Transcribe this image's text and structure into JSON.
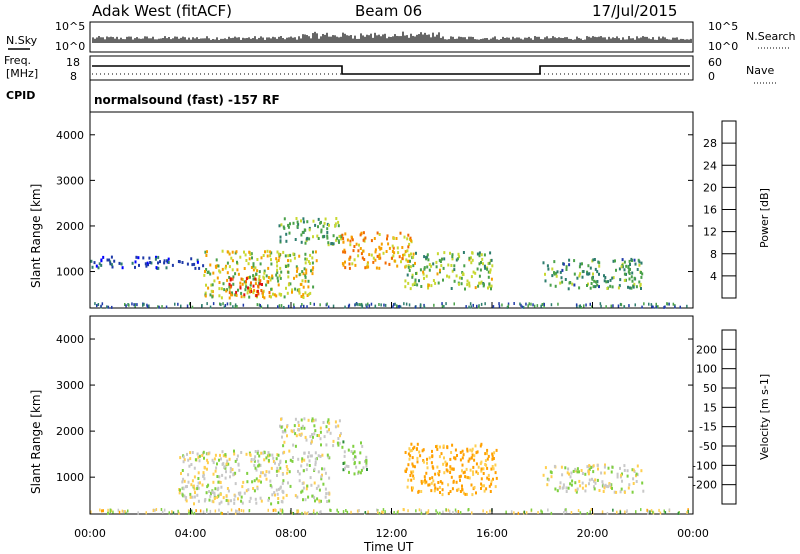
{
  "header": {
    "station": "Adak West (fitACF)",
    "beam": "Beam 06",
    "date": "17/Jul/2015"
  },
  "panels": {
    "nsky": {
      "left_label": "N.Sky",
      "right_label": "N.Search",
      "ticks_left": [
        "10^5",
        "10^0"
      ],
      "ticks_right": [
        "10^5",
        "10^0"
      ]
    },
    "freq": {
      "left_label_1": "Freq.",
      "left_label_2": "[MHz]",
      "right_label": "Nave",
      "ticks_left": [
        "18",
        "8"
      ],
      "ticks_right": [
        "60",
        "0"
      ]
    },
    "cpid": {
      "label": "CPID",
      "text": "normalsound (fast) -157 RF"
    }
  },
  "colors": {
    "power_scale": [
      "#0000ff",
      "#1f3aa8",
      "#2e7d6e",
      "#4aa14a",
      "#c8d832",
      "#f5a000",
      "#f26a00",
      "#e01010"
    ],
    "velocity_scale": [
      "#2b3aa8",
      "#2f6f8a",
      "#2c8b3a",
      "#7fd040",
      "#c8c8c8",
      "#ffcf50",
      "#ffa000",
      "#ff6a00",
      "#ee3300",
      "#ff0000"
    ]
  },
  "chart_data": [
    {
      "type": "heatmap",
      "name": "power",
      "ylabel": "Slant Range [km]",
      "yticks": [
        "1000",
        "2000",
        "3000",
        "4000"
      ],
      "ylim": [
        200,
        4500
      ],
      "xlim": [
        "00:00",
        "24:00"
      ],
      "colorbar_label": "Power [dB]",
      "colorbar_ticks": [
        "4",
        "8",
        "12",
        "16",
        "20",
        "24",
        "28"
      ],
      "regions": [
        {
          "t0": 4.5,
          "t1": 9.0,
          "r0": 450,
          "r1": 1500,
          "level": 18
        },
        {
          "t0": 5.5,
          "t1": 7.2,
          "r0": 500,
          "r1": 900,
          "level": 28
        },
        {
          "t0": 7.5,
          "t1": 10.0,
          "r0": 1600,
          "r1": 2200,
          "level": 14
        },
        {
          "t0": 10.0,
          "t1": 12.8,
          "r0": 1100,
          "r1": 1900,
          "level": 22
        },
        {
          "t0": 12.5,
          "t1": 16.0,
          "r0": 650,
          "r1": 1450,
          "level": 16
        },
        {
          "t0": 18.0,
          "t1": 22.0,
          "r0": 650,
          "r1": 1300,
          "level": 12
        },
        {
          "t0": 0.0,
          "t1": 4.5,
          "r0": 1100,
          "r1": 1350,
          "level": 6
        }
      ]
    },
    {
      "type": "heatmap",
      "name": "velocity",
      "ylabel": "Slant Range [km]",
      "yticks": [
        "1000",
        "2000",
        "3000",
        "4000"
      ],
      "ylim": [
        200,
        4500
      ],
      "xlabel": "Time UT",
      "xticks": [
        "00:00",
        "04:00",
        "08:00",
        "12:00",
        "16:00",
        "20:00",
        "00:00"
      ],
      "colorbar_label": "Velocity [m s-1]",
      "colorbar_ticks": [
        "200",
        "100",
        "50",
        "15",
        "-15",
        "-50",
        "-100",
        "-200"
      ],
      "regions": [
        {
          "t0": 3.5,
          "t1": 9.5,
          "r0": 450,
          "r1": 1600,
          "vel": 0
        },
        {
          "t0": 12.5,
          "t1": 16.2,
          "r0": 650,
          "r1": 1750,
          "vel": -60
        },
        {
          "t0": 7.5,
          "t1": 10.0,
          "r0": 1700,
          "r1": 2300,
          "vel": 0
        },
        {
          "t0": 18.0,
          "t1": 22.0,
          "r0": 700,
          "r1": 1300,
          "vel": 0
        },
        {
          "t0": 10.0,
          "t1": 11.0,
          "r0": 1100,
          "r1": 1800,
          "vel": 30
        }
      ]
    }
  ]
}
